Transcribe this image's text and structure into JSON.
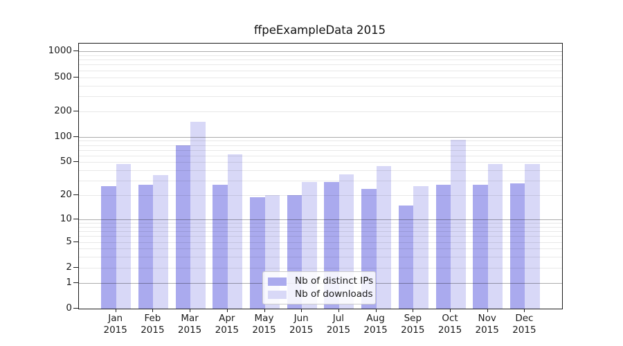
{
  "chart_data": {
    "type": "bar",
    "title": "ffpeExampleData 2015",
    "categories": [
      "Jan",
      "Feb",
      "Mar",
      "Apr",
      "May",
      "Jun",
      "Jul",
      "Aug",
      "Sep",
      "Oct",
      "Nov",
      "Dec"
    ],
    "year": "2015",
    "series": [
      {
        "name": "Nb of distinct IPs",
        "color": "#aaaaee",
        "values": [
          26,
          27,
          80,
          27,
          19,
          20,
          29,
          24,
          15,
          27,
          27,
          28
        ]
      },
      {
        "name": "Nb of downloads",
        "color": "#d8d8f7",
        "values": [
          48,
          35,
          150,
          62,
          20,
          29,
          36,
          45,
          26,
          93,
          48,
          48
        ]
      }
    ],
    "y_axis": {
      "scale": "log10(1+y)",
      "tick_labels": [
        1000,
        500,
        200,
        100,
        50,
        20,
        10,
        5,
        2,
        1,
        0
      ],
      "major_gridlines": [
        1,
        10,
        100,
        1000
      ],
      "minor_gridlines": "multiples 2-9 of each decade",
      "ymin": 0,
      "ymax": 1233
    },
    "x_axis": {
      "tick_label_format": "month over year"
    },
    "legend": {
      "position": "lower center",
      "items": [
        "Nb of distinct IPs",
        "Nb of downloads"
      ]
    },
    "grid": "both levels, drawn above bars"
  },
  "colors": {
    "distinct_ips": "#aaaaee",
    "downloads": "#d8d8f7",
    "grid_major": "rgba(0,0,0,0.33)",
    "grid_minor": "rgba(0,0,0,0.09)",
    "axis": "#1a1a1a",
    "background": "#ffffff"
  }
}
